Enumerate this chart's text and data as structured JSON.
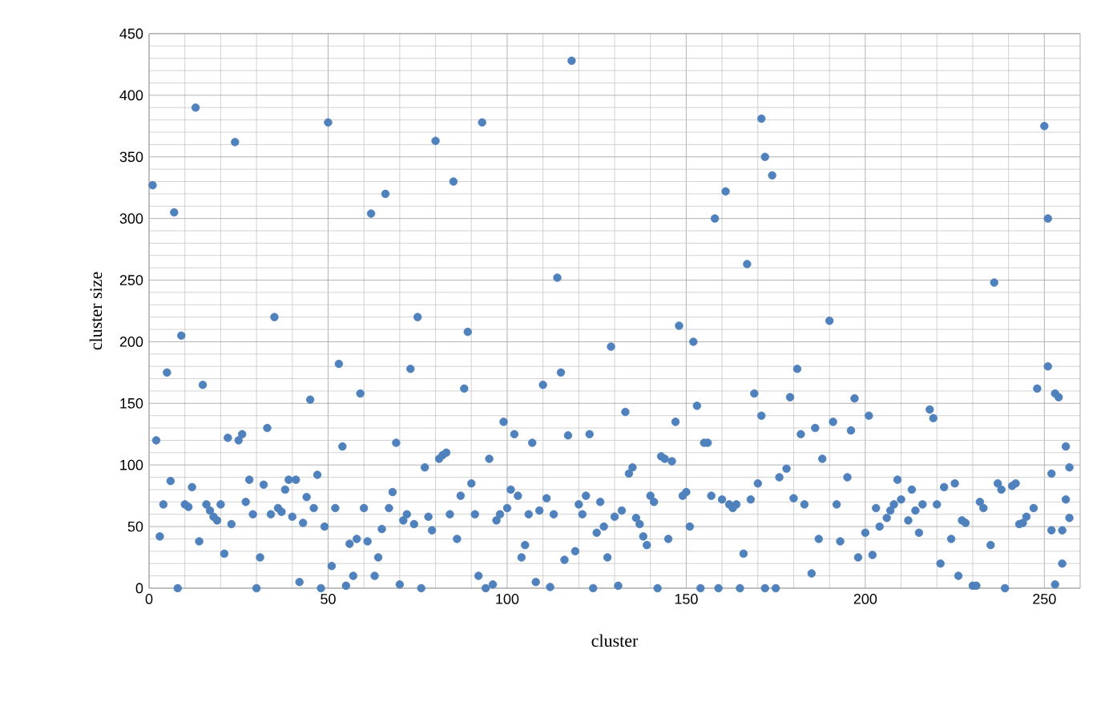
{
  "chart_data": {
    "type": "scatter",
    "xlabel": "cluster",
    "ylabel": "cluster size",
    "xlim": [
      0,
      260
    ],
    "xticks": [
      0,
      50,
      100,
      150,
      200,
      250
    ],
    "ylim": [
      0,
      450
    ],
    "yticks": [
      0,
      50,
      100,
      150,
      200,
      250,
      300,
      350,
      400,
      450
    ],
    "grid": true,
    "marker": "circle",
    "series": [
      {
        "color": "#4f81bd",
        "x": [
          1,
          2,
          3,
          4,
          5,
          6,
          7,
          8,
          9,
          10,
          11,
          12,
          13,
          14,
          15,
          16,
          17,
          18,
          19,
          20,
          21,
          22,
          23,
          24,
          25,
          26,
          27,
          28,
          29,
          30,
          31,
          32,
          33,
          34,
          35,
          36,
          37,
          38,
          39,
          40,
          41,
          42,
          43,
          44,
          45,
          46,
          47,
          48,
          49,
          50,
          51,
          52,
          53,
          54,
          55,
          56,
          57,
          58,
          59,
          60,
          61,
          62,
          63,
          64,
          65,
          66,
          67,
          68,
          69,
          70,
          71,
          72,
          73,
          74,
          75,
          76,
          77,
          78,
          79,
          80,
          81,
          82,
          83,
          84,
          85,
          86,
          87,
          88,
          89,
          90,
          91,
          92,
          93,
          94,
          95,
          96,
          97,
          98,
          99,
          100,
          101,
          102,
          103,
          104,
          105,
          106,
          107,
          108,
          109,
          110,
          111,
          112,
          113,
          114,
          115,
          116,
          117,
          118,
          119,
          120,
          121,
          122,
          123,
          124,
          125,
          126,
          127,
          128,
          129,
          130,
          131,
          132,
          133,
          134,
          135,
          136,
          137,
          138,
          139,
          140,
          141,
          142,
          143,
          144,
          145,
          146,
          147,
          148,
          149,
          150,
          151,
          152,
          153,
          154,
          155,
          156,
          157,
          158,
          159,
          160,
          161,
          162,
          163,
          164,
          165,
          166,
          167,
          168,
          169,
          170,
          171,
          172,
          171,
          172,
          174,
          175,
          176,
          178,
          179,
          180,
          181,
          182,
          183,
          185,
          186,
          187,
          188,
          190,
          191,
          192,
          193,
          195,
          196,
          197,
          198,
          200,
          201,
          202,
          203,
          204,
          206,
          207,
          208,
          209,
          210,
          212,
          213,
          214,
          215,
          216,
          218,
          219,
          220,
          221,
          222,
          224,
          225,
          226,
          227,
          228,
          230,
          231,
          232,
          233,
          235,
          236,
          237,
          238,
          239,
          241,
          242,
          243,
          244,
          245,
          247,
          248,
          250,
          251,
          251,
          252,
          252,
          253,
          253,
          254,
          255,
          255,
          256,
          256,
          257,
          257
        ],
        "values": [
          327,
          120,
          42,
          68,
          175,
          87,
          305,
          0,
          205,
          68,
          66,
          82,
          390,
          38,
          165,
          68,
          63,
          58,
          55,
          68,
          28,
          122,
          52,
          362,
          120,
          125,
          70,
          88,
          60,
          0,
          25,
          84,
          130,
          60,
          220,
          65,
          62,
          80,
          88,
          58,
          88,
          5,
          53,
          74,
          153,
          65,
          92,
          0,
          50,
          378,
          18,
          65,
          182,
          115,
          2,
          36,
          10,
          40,
          158,
          65,
          38,
          304,
          10,
          25,
          48,
          320,
          65,
          78,
          118,
          3,
          55,
          60,
          178,
          52,
          220,
          0,
          98,
          58,
          47,
          363,
          105,
          108,
          110,
          60,
          330,
          40,
          75,
          162,
          208,
          85,
          60,
          10,
          378,
          0,
          105,
          3,
          55,
          60,
          135,
          65,
          80,
          125,
          75,
          25,
          35,
          60,
          118,
          5,
          63,
          165,
          73,
          1,
          60,
          252,
          175,
          23,
          124,
          428,
          30,
          68,
          60,
          75,
          125,
          0,
          45,
          70,
          50,
          25,
          196,
          58,
          2,
          63,
          143,
          93,
          98,
          57,
          52,
          42,
          35,
          75,
          70,
          0,
          107,
          105,
          40,
          103,
          135,
          213,
          75,
          78,
          50,
          200,
          148,
          0,
          118,
          118,
          75,
          300,
          0,
          72,
          322,
          68,
          65,
          68,
          0,
          28,
          263,
          72,
          158,
          85,
          140,
          0,
          381,
          350,
          335,
          0,
          90,
          97,
          155,
          73,
          178,
          125,
          68,
          12,
          130,
          40,
          105,
          217,
          135,
          68,
          38,
          90,
          128,
          154,
          25,
          45,
          140,
          27,
          65,
          50,
          57,
          63,
          68,
          88,
          72,
          55,
          80,
          63,
          45,
          68,
          145,
          138,
          68,
          20,
          82,
          40,
          85,
          10,
          55,
          53,
          2,
          2,
          70,
          65,
          35,
          248,
          85,
          80,
          0,
          83,
          85,
          52,
          53,
          58,
          65,
          162,
          375,
          180,
          300,
          93,
          47,
          158,
          3,
          155,
          47,
          20,
          115,
          72,
          98,
          57
        ]
      }
    ]
  }
}
